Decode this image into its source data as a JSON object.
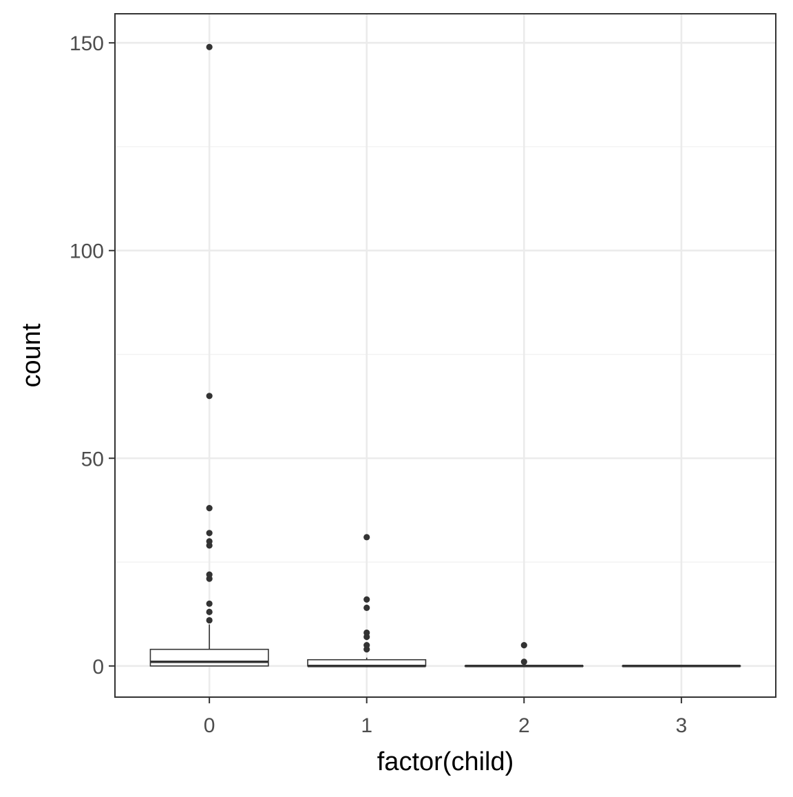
{
  "chart_data": {
    "type": "boxplot",
    "xlabel": "factor(child)",
    "ylabel": "count",
    "ylim": [
      -7.5,
      157
    ],
    "y_ticks": [
      0,
      50,
      100,
      150
    ],
    "y_minor_ticks": [
      25,
      75,
      125
    ],
    "categories": [
      "0",
      "1",
      "2",
      "3"
    ],
    "grid": true,
    "boxes": [
      {
        "category": "0",
        "lower": 0,
        "q1": 0,
        "median": 1,
        "q3": 4,
        "upper": 10,
        "outliers": [
          11,
          13,
          15,
          21,
          22,
          29,
          30,
          32,
          38,
          65,
          149
        ]
      },
      {
        "category": "1",
        "lower": 0,
        "q1": 0,
        "median": 0,
        "q3": 1.5,
        "upper": 2,
        "outliers": [
          4,
          5,
          7,
          8,
          14,
          16,
          31
        ]
      },
      {
        "category": "2",
        "lower": 0,
        "q1": 0,
        "median": 0,
        "q3": 0,
        "upper": 0,
        "outliers": [
          1,
          5
        ]
      },
      {
        "category": "3",
        "lower": 0,
        "q1": 0,
        "median": 0,
        "q3": 0,
        "upper": 0,
        "outliers": []
      }
    ],
    "colors": {
      "panel_border": "#333333",
      "grid_major": "#ebebeb",
      "grid_minor": "#f2f2f2",
      "box_line": "#333333",
      "box_fill": "#ffffff",
      "tick_label": "#4d4d4d",
      "axis_title": "#000000"
    }
  }
}
